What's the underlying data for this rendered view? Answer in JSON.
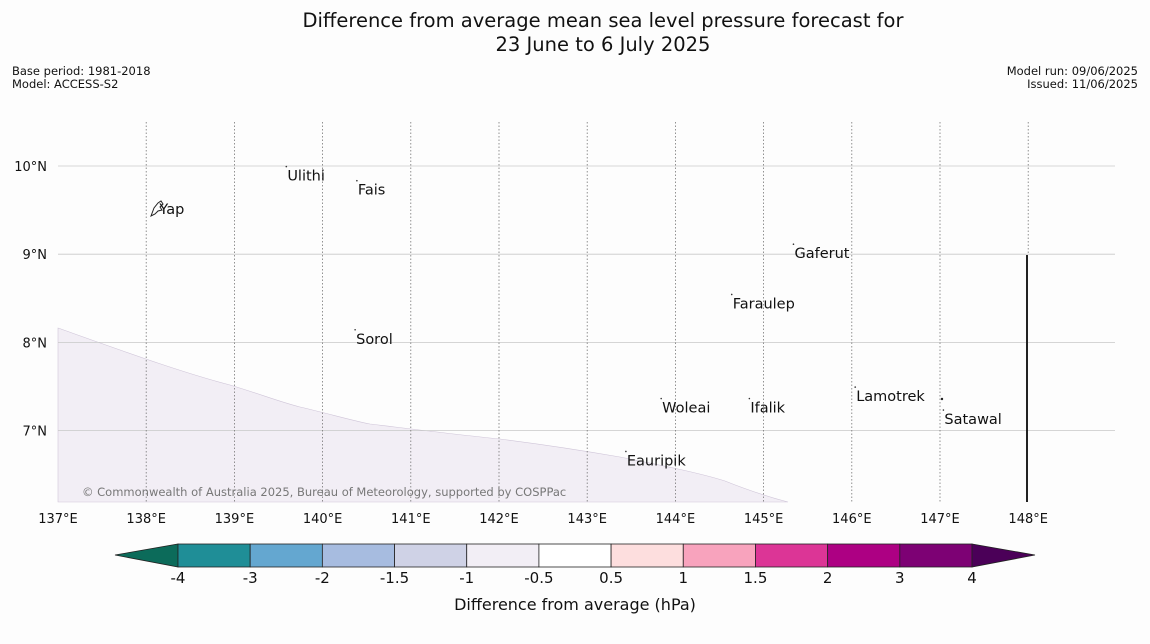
{
  "title_line1": "Difference from average mean sea level pressure forecast for",
  "title_line2": "23 June to 6 July 2025",
  "meta_left": {
    "base_period": "Base period: 1981-2018",
    "model": "Model: ACCESS-S2"
  },
  "meta_right": {
    "model_run": "Model run: 09/06/2025",
    "issued": "Issued: 11/06/2025"
  },
  "map": {
    "lon_ticks": [
      "137°E",
      "138°E",
      "139°E",
      "140°E",
      "141°E",
      "142°E",
      "143°E",
      "144°E",
      "145°E",
      "146°E",
      "147°E",
      "148°E"
    ],
    "lat_ticks": [
      "10°N",
      "9°N",
      "8°N",
      "7°N"
    ],
    "places": [
      {
        "name": "Yap",
        "lon": 138.15,
        "lat": 9.5
      },
      {
        "name": "Ulithi",
        "lon": 139.6,
        "lat": 9.88
      },
      {
        "name": "Fais",
        "lon": 140.4,
        "lat": 9.72
      },
      {
        "name": "Gaferut",
        "lon": 145.35,
        "lat": 9.0
      },
      {
        "name": "Faraulep",
        "lon": 144.65,
        "lat": 8.43
      },
      {
        "name": "Sorol",
        "lon": 140.38,
        "lat": 8.03
      },
      {
        "name": "Lamotrek",
        "lon": 146.05,
        "lat": 7.38
      },
      {
        "name": "Satawal",
        "lon": 147.05,
        "lat": 7.12
      },
      {
        "name": "Woleai",
        "lon": 143.85,
        "lat": 7.25
      },
      {
        "name": "Ifalik",
        "lon": 144.85,
        "lat": 7.25
      },
      {
        "name": "Eauripik",
        "lon": 143.45,
        "lat": 6.65
      }
    ],
    "copyright": "© Commonwealth of Australia 2025, Bureau of Meteorology, supported by COSPPac"
  },
  "colorbar": {
    "label": "Difference from average (hPa)",
    "tick_labels": [
      "-4",
      "-3",
      "-2",
      "-1.5",
      "-1",
      "-0.5",
      "0.5",
      "1",
      "1.5",
      "2",
      "3",
      "4"
    ],
    "under_color": "#0c6b5a",
    "over_color": "#4b0058",
    "colors": [
      "#1f8e97",
      "#64a7d0",
      "#a7bce0",
      "#cfd2e6",
      "#f2eef5",
      "#ffffff",
      "#fddede",
      "#f8a3bd",
      "#dc3596",
      "#ad0083",
      "#7d0174"
    ]
  }
}
